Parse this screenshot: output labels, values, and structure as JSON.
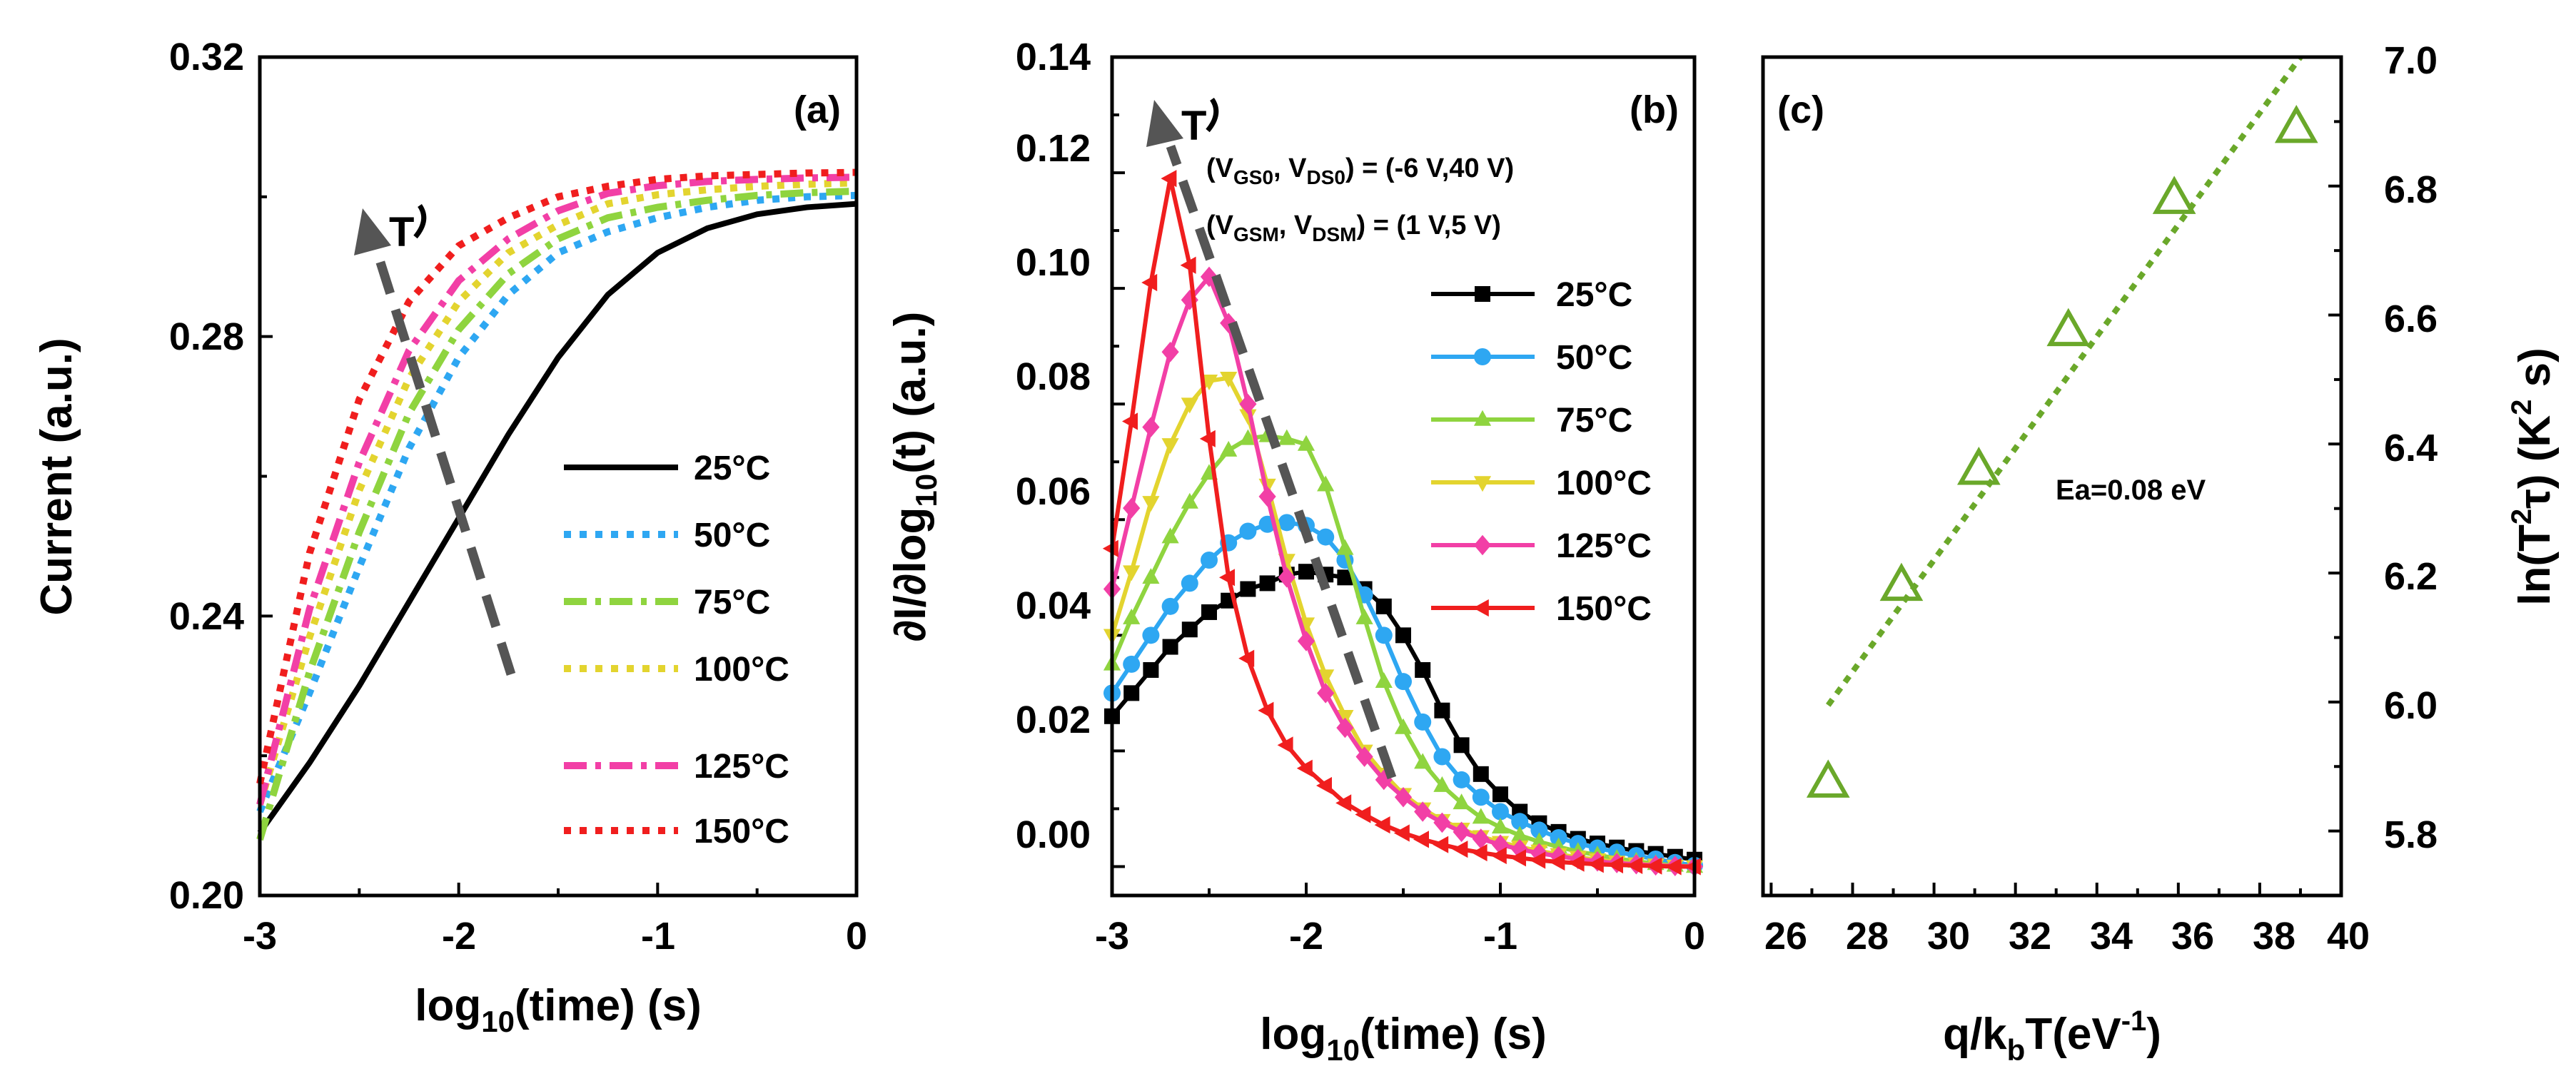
{
  "colors": {
    "25": "#000000",
    "50": "#2ea7f2",
    "75": "#8fd43f",
    "100": "#e3d42f",
    "125": "#f23fa6",
    "150": "#f01e1e",
    "fit": "#6aa82a",
    "tri": "#6aa82a",
    "arrow": "#555555"
  },
  "chart_data": [
    {
      "panel": "(a)",
      "type": "line",
      "xlabel_main": "log",
      "xlabel_sub": "10",
      "xlabel_rest": "(time) (s)",
      "ylabel": "Current (a.u.)",
      "xlim": [
        -3,
        0
      ],
      "ylim": [
        0.2,
        0.32
      ],
      "xticks": [
        "-3",
        "-2",
        "-1",
        "0"
      ],
      "yticks": [
        "0.20",
        "0.24",
        "0.28",
        "0.32"
      ],
      "arrow_label": "T",
      "series": [
        {
          "name": "25°C",
          "style": "solid",
          "x": [
            -3,
            -2.75,
            -2.5,
            -2.25,
            -2,
            -1.75,
            -1.5,
            -1.25,
            -1,
            -0.75,
            -0.5,
            -0.25,
            0
          ],
          "y": [
            0.209,
            0.219,
            0.23,
            0.242,
            0.254,
            0.266,
            0.277,
            0.286,
            0.292,
            0.2955,
            0.2975,
            0.2985,
            0.299
          ]
        },
        {
          "name": "50°C",
          "style": "dotted",
          "x": [
            -3,
            -2.75,
            -2.5,
            -2.25,
            -2,
            -1.75,
            -1.5,
            -1.25,
            -1,
            -0.75,
            -0.5,
            -0.25,
            0
          ],
          "y": [
            0.212,
            0.229,
            0.247,
            0.264,
            0.277,
            0.286,
            0.292,
            0.295,
            0.297,
            0.2985,
            0.2995,
            0.3,
            0.3002
          ]
        },
        {
          "name": "75°C",
          "style": "dashdot",
          "x": [
            -3,
            -2.75,
            -2.5,
            -2.25,
            -2,
            -1.75,
            -1.5,
            -1.25,
            -1,
            -0.75,
            -0.5,
            -0.25,
            0
          ],
          "y": [
            0.208,
            0.232,
            0.252,
            0.269,
            0.281,
            0.289,
            0.294,
            0.297,
            0.2985,
            0.2995,
            0.3002,
            0.3006,
            0.3008
          ]
        },
        {
          "name": "100°C",
          "style": "dotted",
          "x": [
            -3,
            -2.75,
            -2.5,
            -2.25,
            -2,
            -1.75,
            -1.5,
            -1.25,
            -1,
            -0.75,
            -0.5,
            -0.25,
            0
          ],
          "y": [
            0.213,
            0.237,
            0.258,
            0.274,
            0.285,
            0.292,
            0.296,
            0.299,
            0.3003,
            0.301,
            0.3015,
            0.3018,
            0.302
          ]
        },
        {
          "name": "125°C",
          "style": "dashdot",
          "x": [
            -3,
            -2.75,
            -2.5,
            -2.25,
            -2,
            -1.75,
            -1.5,
            -1.25,
            -1,
            -0.75,
            -0.5,
            -0.25,
            0
          ],
          "y": [
            0.213,
            0.241,
            0.262,
            0.278,
            0.288,
            0.294,
            0.298,
            0.3005,
            0.3016,
            0.3022,
            0.3025,
            0.3027,
            0.3028
          ]
        },
        {
          "name": "150°C",
          "style": "dotted",
          "x": [
            -3,
            -2.75,
            -2.5,
            -2.25,
            -2,
            -1.75,
            -1.5,
            -1.25,
            -1,
            -0.75,
            -0.5,
            -0.25,
            0
          ],
          "y": [
            0.216,
            0.249,
            0.271,
            0.285,
            0.293,
            0.297,
            0.3,
            0.3015,
            0.3025,
            0.303,
            0.3032,
            0.3034,
            0.3035
          ]
        }
      ]
    },
    {
      "panel": "(b)",
      "type": "line",
      "xlabel_main": "log",
      "xlabel_sub": "10",
      "xlabel_rest": "(time) (s)",
      "ylabel_main": "∂I/∂log",
      "ylabel_sub": "10",
      "ylabel_rest": "(t) (a.u.)",
      "xlim": [
        -3,
        0
      ],
      "ylim": [
        -0.005,
        0.14
      ],
      "xticks": [
        "-3",
        "-2",
        "-1",
        "0"
      ],
      "yticks": [
        "0.00",
        "0.02",
        "0.04",
        "0.06",
        "0.08",
        "0.10",
        "0.12",
        "0.14"
      ],
      "arrow_label": "T",
      "annotation1": {
        "open": "(V",
        "s1": "GS0",
        "mid": ", V",
        "s2": "DS0",
        "close": ") = (-6 V,40 V)"
      },
      "annotation2": {
        "open": "(V",
        "s1": "GSM",
        "mid": ", V",
        "s2": "DSM",
        "close": ") = (1 V,5 V)"
      },
      "x": [
        -3,
        -2.9,
        -2.8,
        -2.7,
        -2.6,
        -2.5,
        -2.4,
        -2.3,
        -2.2,
        -2.1,
        -2,
        -1.9,
        -1.8,
        -1.7,
        -1.6,
        -1.5,
        -1.4,
        -1.3,
        -1.2,
        -1.1,
        -1,
        -0.9,
        -0.8,
        -0.7,
        -0.6,
        -0.5,
        -0.4,
        -0.3,
        -0.2,
        -0.1,
        0
      ],
      "series": [
        {
          "name": "25°C",
          "marker": "square",
          "values": [
            0.026,
            0.03,
            0.034,
            0.038,
            0.041,
            0.044,
            0.046,
            0.048,
            0.049,
            0.0505,
            0.051,
            0.0505,
            0.05,
            0.048,
            0.045,
            0.04,
            0.034,
            0.027,
            0.021,
            0.016,
            0.0125,
            0.0095,
            0.0075,
            0.006,
            0.0048,
            0.004,
            0.0033,
            0.0027,
            0.0022,
            0.0017,
            0.0012
          ]
        },
        {
          "name": "50°C",
          "marker": "circle",
          "values": [
            0.03,
            0.035,
            0.04,
            0.045,
            0.049,
            0.053,
            0.056,
            0.058,
            0.0592,
            0.0595,
            0.059,
            0.057,
            0.053,
            0.047,
            0.04,
            0.032,
            0.025,
            0.019,
            0.015,
            0.012,
            0.0095,
            0.0078,
            0.0063,
            0.005,
            0.004,
            0.0032,
            0.0025,
            0.0019,
            0.0013,
            0.0007,
            0.0002
          ]
        },
        {
          "name": "75°C",
          "marker": "triangle-up",
          "values": [
            0.035,
            0.043,
            0.05,
            0.057,
            0.063,
            0.068,
            0.072,
            0.074,
            0.0745,
            0.074,
            0.073,
            0.066,
            0.055,
            0.043,
            0.032,
            0.024,
            0.018,
            0.014,
            0.011,
            0.0085,
            0.0068,
            0.0054,
            0.0043,
            0.0034,
            0.0026,
            0.002,
            0.0014,
            0.0009,
            0.0005,
            0.0002,
            0.0
          ]
        },
        {
          "name": "100°C",
          "marker": "triangle-down",
          "values": [
            0.04,
            0.051,
            0.063,
            0.073,
            0.08,
            0.084,
            0.0845,
            0.078,
            0.066,
            0.053,
            0.042,
            0.033,
            0.026,
            0.02,
            0.016,
            0.0125,
            0.01,
            0.008,
            0.0065,
            0.0052,
            0.0042,
            0.0034,
            0.0027,
            0.0021,
            0.0016,
            0.0012,
            0.0008,
            0.0005,
            0.0003,
            0.0001,
            0.0
          ]
        },
        {
          "name": "125°C",
          "marker": "diamond",
          "values": [
            0.048,
            0.062,
            0.076,
            0.089,
            0.098,
            0.102,
            0.094,
            0.08,
            0.064,
            0.05,
            0.039,
            0.03,
            0.024,
            0.019,
            0.015,
            0.012,
            0.0095,
            0.0076,
            0.006,
            0.0048,
            0.0038,
            0.003,
            0.0023,
            0.0018,
            0.0013,
            0.0009,
            0.0006,
            0.0004,
            0.0002,
            0.0001,
            0.0
          ]
        },
        {
          "name": "150°C",
          "marker": "triangle-left",
          "values": [
            0.055,
            0.077,
            0.101,
            0.119,
            0.104,
            0.074,
            0.05,
            0.036,
            0.027,
            0.021,
            0.017,
            0.014,
            0.011,
            0.009,
            0.0072,
            0.0058,
            0.0047,
            0.0038,
            0.003,
            0.0024,
            0.0019,
            0.0015,
            0.0011,
            0.0008,
            0.0006,
            0.0004,
            0.0003,
            0.0002,
            0.0001,
            0.0,
            0.0
          ]
        }
      ]
    },
    {
      "panel": "(c)",
      "type": "scatter",
      "xlabel_main": "q/k",
      "xlabel_sub": "b",
      "xlabel_rest": "T(eV",
      "xlabel_sup": "-1",
      "xlabel_end": ")",
      "ylabel_main": "ln(T",
      "ylabel_sup": "2",
      "ylabel_rest": "τ) (K",
      "ylabel_sup2": "2",
      "ylabel_end": " s)",
      "xlim": [
        25.8,
        40
      ],
      "ylim": [
        5.7,
        7.0
      ],
      "xticks": [
        "26",
        "28",
        "30",
        "32",
        "34",
        "36",
        "38",
        "40"
      ],
      "yticks": [
        "5.8",
        "6.0",
        "6.2",
        "6.4",
        "6.6",
        "6.8",
        "7.0"
      ],
      "annotation": "Ea=0.08 eV",
      "points": {
        "x": [
          27.4,
          29.2,
          31.1,
          33.3,
          35.9,
          38.9
        ],
        "y": [
          5.875,
          6.18,
          6.36,
          6.575,
          6.78,
          6.89
        ]
      },
      "fit": {
        "x": [
          27.4,
          39.0
        ],
        "y": [
          5.995,
          7.0
        ]
      }
    }
  ]
}
